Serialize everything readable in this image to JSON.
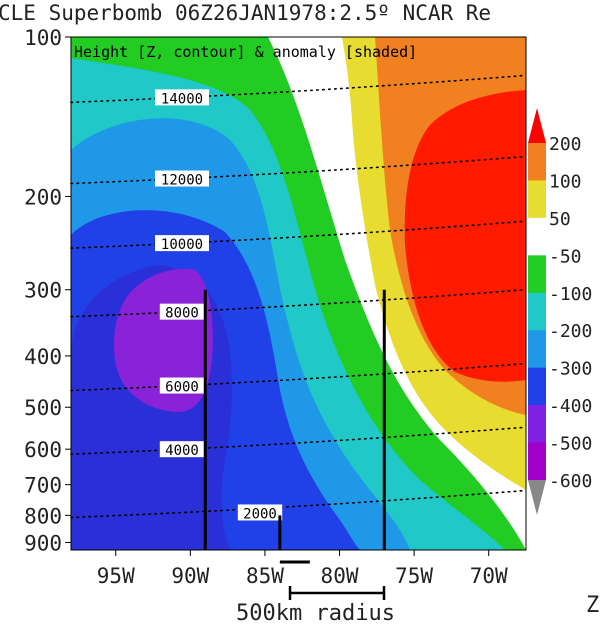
{
  "chart_data": {
    "type": "heatmap",
    "title": "CLE Superbomb 06Z26JAN1978:2.5º NCAR Re",
    "subtitle": "Height [Z, contour] & anomaly [shaded]",
    "y_axis": {
      "scale": "log",
      "range": [
        100,
        930
      ],
      "reversed": true,
      "tick_labels": [
        "100",
        "200",
        "300",
        "400",
        "500",
        "600",
        "700",
        "800",
        "900"
      ]
    },
    "x_axis": {
      "range": [
        -98,
        -67.5
      ],
      "tick_values": [
        -95,
        -90,
        -85,
        -80,
        -75,
        -70
      ],
      "tick_labels": [
        "95W",
        "90W",
        "85W",
        "80W",
        "75W",
        "70W"
      ]
    },
    "colorbar": {
      "levels": [
        "200",
        "100",
        "50",
        "-50",
        "-100",
        "-200",
        "-300",
        "-400",
        "-500",
        "-600"
      ],
      "colors": [
        "#ff0000",
        "#f08020",
        "#e8dc30",
        "#ffffff",
        "#22cc22",
        "#20c8c8",
        "#2098e8",
        "#2040e8",
        "#8020e0",
        "#a000c8",
        "#888888"
      ]
    },
    "height_contours": [
      {
        "label": "14000",
        "p": 130
      },
      {
        "label": "12000",
        "p": 185
      },
      {
        "label": "10000",
        "p": 245
      },
      {
        "label": "8000",
        "p": 330
      },
      {
        "label": "6000",
        "p": 455
      },
      {
        "label": "4000",
        "p": 600
      },
      {
        "label": "2000",
        "p": 790
      }
    ],
    "vertical_lines": [
      {
        "lon": -89,
        "p_top": 300,
        "p_bottom": 930
      },
      {
        "lon": -77,
        "p_top": 300,
        "p_bottom": 930
      },
      {
        "lon": -84,
        "p_top": 800,
        "p_bottom": 930
      }
    ],
    "annotation": "500km radius",
    "corner_text": "Z"
  }
}
